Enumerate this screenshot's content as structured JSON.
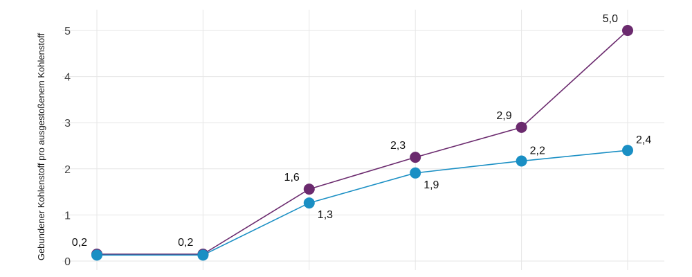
{
  "chart_data": {
    "type": "line",
    "ylabel": "Gebundener Kohlenstoff pro ausgestoßenem Kohlenstoff",
    "xlabel": "",
    "ylim": [
      0,
      5.5
    ],
    "yticks": [
      "0",
      "1",
      "2",
      "3",
      "4",
      "5"
    ],
    "x": [
      1,
      2,
      3,
      4,
      5,
      6
    ],
    "grid": true,
    "series": [
      {
        "color": "#6b2a6e",
        "values": [
          0.15,
          0.15,
          1.56,
          2.25,
          2.9,
          5.0
        ],
        "labels": [
          "0,2",
          "0,2",
          "1,6",
          "2,3",
          "2,9",
          "5,0"
        ]
      },
      {
        "color": "#1a8fc4",
        "values": [
          0.13,
          0.13,
          1.26,
          1.91,
          2.17,
          2.4
        ],
        "labels": [
          "",
          "",
          "1,3",
          "1,9",
          "2,2",
          "2,4"
        ]
      }
    ]
  }
}
